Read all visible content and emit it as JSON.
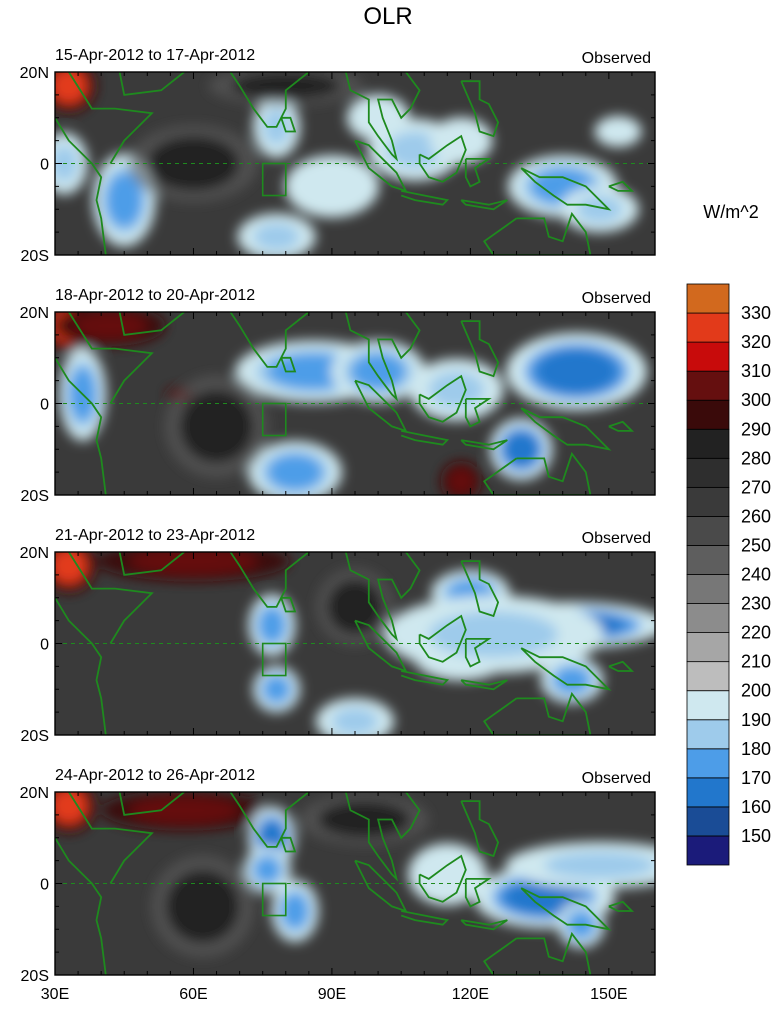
{
  "chart_data": {
    "type": "heatmap",
    "title": "OLR",
    "units": "W/m^2",
    "xlim": [
      30,
      160
    ],
    "ylim": [
      -20,
      20
    ],
    "x_ticks": [
      {
        "value": 30,
        "label": "30E"
      },
      {
        "value": 60,
        "label": "60E"
      },
      {
        "value": 90,
        "label": "90E"
      },
      {
        "value": 120,
        "label": "120E"
      },
      {
        "value": 150,
        "label": "150E"
      }
    ],
    "y_ticks": [
      {
        "value": 20,
        "label": "20N"
      },
      {
        "value": 0,
        "label": "0"
      },
      {
        "value": -20,
        "label": "20S"
      }
    ],
    "colorbar": {
      "levels": [
        150,
        160,
        170,
        180,
        190,
        200,
        210,
        220,
        230,
        240,
        250,
        260,
        270,
        280,
        290,
        300,
        310,
        320,
        330
      ],
      "labels": [
        "150",
        "160",
        "170",
        "180",
        "190",
        "200",
        "210",
        "220",
        "230",
        "240",
        "250",
        "260",
        "270",
        "280",
        "290",
        "300",
        "310",
        "320",
        "330"
      ],
      "colors": [
        "#1b1b7a",
        "#1a4c96",
        "#2277cc",
        "#4d9de8",
        "#9ecbeb",
        "#cfe8ef",
        "#bdbdbd",
        "#a6a6a6",
        "#8c8c8c",
        "#777777",
        "#5e5e5e",
        "#4a4a4a",
        "#3a3a3a",
        "#2e2e2e",
        "#222222",
        "#3a0a0a",
        "#650f0f",
        "#c80b0b",
        "#e23a1a",
        "#d2691e"
      ]
    },
    "box": {
      "lon": [
        75,
        80
      ],
      "lat": [
        -7,
        0
      ]
    },
    "panels": [
      {
        "period": "15-Apr-2012 to 17-Apr-2012",
        "label": "Observed",
        "features": [
          {
            "lon": 33,
            "lat": 17,
            "value": 320,
            "rx": 4,
            "ry": 4
          },
          {
            "lon": 32,
            "lat": 0,
            "value": 185,
            "rx": 3,
            "ry": 4
          },
          {
            "lon": 45,
            "lat": -8,
            "value": 175,
            "rx": 4,
            "ry": 6
          },
          {
            "lon": 78,
            "lat": 8,
            "value": 185,
            "rx": 3,
            "ry": 4
          },
          {
            "lon": 90,
            "lat": -5,
            "value": 190,
            "rx": 6,
            "ry": 4
          },
          {
            "lon": 100,
            "lat": 10,
            "value": 190,
            "rx": 4,
            "ry": 3
          },
          {
            "lon": 108,
            "lat": 3,
            "value": 185,
            "rx": 6,
            "ry": 4
          },
          {
            "lon": 118,
            "lat": 5,
            "value": 190,
            "rx": 4,
            "ry": 3
          },
          {
            "lon": 140,
            "lat": -5,
            "value": 175,
            "rx": 7,
            "ry": 4
          },
          {
            "lon": 148,
            "lat": -10,
            "value": 180,
            "rx": 5,
            "ry": 3
          },
          {
            "lon": 152,
            "lat": 7,
            "value": 190,
            "rx": 3,
            "ry": 2
          },
          {
            "lon": 78,
            "lat": -16,
            "value": 185,
            "rx": 5,
            "ry": 3
          },
          {
            "lon": 60,
            "lat": 0,
            "value": 285,
            "rx": 10,
            "ry": 6
          },
          {
            "lon": 80,
            "lat": 17,
            "value": 280,
            "rx": 12,
            "ry": 3
          }
        ]
      },
      {
        "period": "18-Apr-2012 to 20-Apr-2012",
        "label": "Observed",
        "features": [
          {
            "lon": 33,
            "lat": 17,
            "value": 320,
            "rx": 4,
            "ry": 4
          },
          {
            "lon": 42,
            "lat": 17,
            "value": 300,
            "rx": 8,
            "ry": 3
          },
          {
            "lon": 36,
            "lat": 2,
            "value": 170,
            "rx": 3,
            "ry": 6
          },
          {
            "lon": 86,
            "lat": 7,
            "value": 170,
            "rx": 10,
            "ry": 4
          },
          {
            "lon": 100,
            "lat": 7,
            "value": 175,
            "rx": 6,
            "ry": 4
          },
          {
            "lon": 117,
            "lat": 3,
            "value": 180,
            "rx": 6,
            "ry": 4
          },
          {
            "lon": 143,
            "lat": 7,
            "value": 165,
            "rx": 9,
            "ry": 5
          },
          {
            "lon": 131,
            "lat": -10,
            "value": 160,
            "rx": 4,
            "ry": 4
          },
          {
            "lon": 82,
            "lat": -15,
            "value": 170,
            "rx": 6,
            "ry": 4
          },
          {
            "lon": 118,
            "lat": -17,
            "value": 300,
            "rx": 3,
            "ry": 3
          },
          {
            "lon": 57,
            "lat": 2,
            "value": 300,
            "rx": 2,
            "ry": 1
          },
          {
            "lon": 65,
            "lat": -5,
            "value": 285,
            "rx": 8,
            "ry": 8
          }
        ]
      },
      {
        "period": "21-Apr-2012 to 23-Apr-2012",
        "label": "Observed",
        "features": [
          {
            "lon": 33,
            "lat": 17,
            "value": 320,
            "rx": 4,
            "ry": 4
          },
          {
            "lon": 60,
            "lat": 18,
            "value": 300,
            "rx": 14,
            "ry": 3
          },
          {
            "lon": 77,
            "lat": 4,
            "value": 175,
            "rx": 3,
            "ry": 4
          },
          {
            "lon": 78,
            "lat": -10,
            "value": 175,
            "rx": 3,
            "ry": 3
          },
          {
            "lon": 120,
            "lat": 11,
            "value": 175,
            "rx": 5,
            "ry": 3
          },
          {
            "lon": 142,
            "lat": 4,
            "value": 165,
            "rx": 12,
            "ry": 3
          },
          {
            "lon": 118,
            "lat": -3,
            "value": 180,
            "rx": 6,
            "ry": 3
          },
          {
            "lon": 125,
            "lat": 2,
            "value": 185,
            "rx": 14,
            "ry": 5
          },
          {
            "lon": 142,
            "lat": -8,
            "value": 175,
            "rx": 4,
            "ry": 3
          },
          {
            "lon": 95,
            "lat": -17,
            "value": 185,
            "rx": 5,
            "ry": 3
          },
          {
            "lon": 95,
            "lat": 8,
            "value": 285,
            "rx": 6,
            "ry": 6
          }
        ]
      },
      {
        "period": "24-Apr-2012 to 26-Apr-2012",
        "label": "Observed",
        "features": [
          {
            "lon": 33,
            "lat": 17,
            "value": 320,
            "rx": 4,
            "ry": 4
          },
          {
            "lon": 58,
            "lat": 16,
            "value": 300,
            "rx": 12,
            "ry": 3
          },
          {
            "lon": 77,
            "lat": 10,
            "value": 160,
            "rx": 3,
            "ry": 4
          },
          {
            "lon": 76,
            "lat": 3,
            "value": 170,
            "rx": 3,
            "ry": 3
          },
          {
            "lon": 82,
            "lat": -6,
            "value": 175,
            "rx": 3,
            "ry": 4
          },
          {
            "lon": 136,
            "lat": -3,
            "value": 160,
            "rx": 9,
            "ry": 4
          },
          {
            "lon": 148,
            "lat": 4,
            "value": 185,
            "rx": 12,
            "ry": 3
          },
          {
            "lon": 144,
            "lat": -9,
            "value": 175,
            "rx": 3,
            "ry": 3
          },
          {
            "lon": 115,
            "lat": 2,
            "value": 195,
            "rx": 5,
            "ry": 4
          },
          {
            "lon": 97,
            "lat": 14,
            "value": 280,
            "rx": 10,
            "ry": 4
          },
          {
            "lon": 62,
            "lat": -5,
            "value": 285,
            "rx": 8,
            "ry": 8
          }
        ]
      }
    ]
  }
}
